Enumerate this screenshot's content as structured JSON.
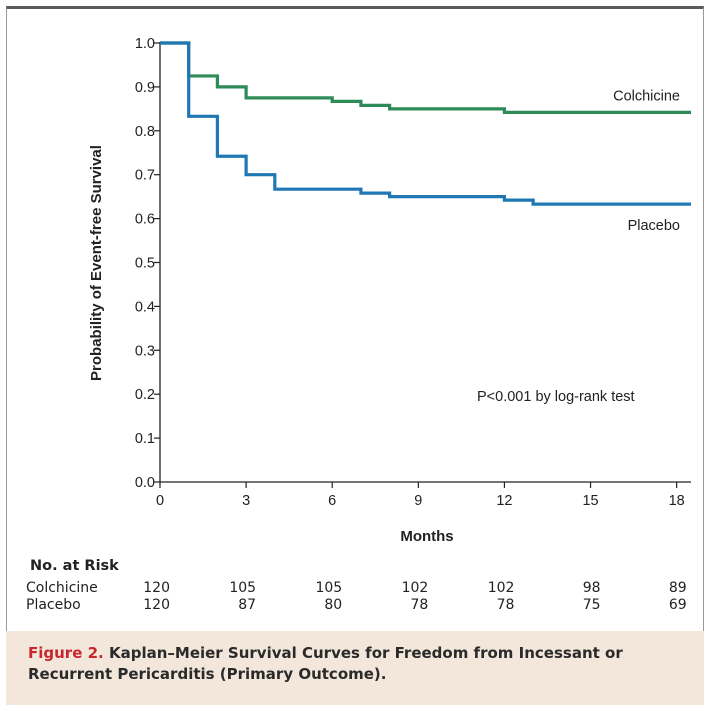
{
  "chart_data": {
    "type": "line",
    "step": true,
    "xlabel": "Months",
    "ylabel": "Probability of Event-free Survival",
    "xlim": [
      0,
      18.5
    ],
    "ylim": [
      0,
      1.0
    ],
    "x_ticks": [
      0,
      3,
      6,
      9,
      12,
      15,
      18
    ],
    "y_ticks": [
      "0.0",
      "0.1",
      "0.2",
      "0.3",
      "0.4",
      "0.5",
      "0.6",
      "0.7",
      "0.8",
      "0.9",
      "1.0"
    ],
    "grid": false,
    "series": [
      {
        "name": "Colchicine",
        "color": "#2e8b57",
        "x": [
          0,
          1,
          2,
          3,
          6,
          7,
          8,
          12,
          18.5
        ],
        "y": [
          1.0,
          0.925,
          0.9,
          0.875,
          0.867,
          0.858,
          0.85,
          0.842,
          0.842
        ]
      },
      {
        "name": "Placebo",
        "color": "#1f77b4",
        "x": [
          0,
          1,
          2,
          3,
          4,
          7,
          8,
          12,
          13,
          18.5
        ],
        "y": [
          1.0,
          0.833,
          0.742,
          0.7,
          0.667,
          0.658,
          0.65,
          0.642,
          0.633,
          0.633
        ]
      }
    ],
    "annotation": "P<0.001 by log-rank test",
    "risk_table": {
      "title": "No. at Risk",
      "months": [
        0,
        3,
        6,
        9,
        12,
        15,
        18
      ],
      "rows": [
        {
          "name": "Colchicine",
          "values": [
            120,
            105,
            105,
            102,
            102,
            98,
            89
          ]
        },
        {
          "name": "Placebo",
          "values": [
            120,
            87,
            80,
            78,
            78,
            75,
            69
          ]
        }
      ]
    }
  },
  "caption": {
    "label": "Figure 2.",
    "text": "Kaplan–Meier Survival Curves for Freedom from Incessant or Recurrent Pericarditis (Primary Outcome)."
  }
}
